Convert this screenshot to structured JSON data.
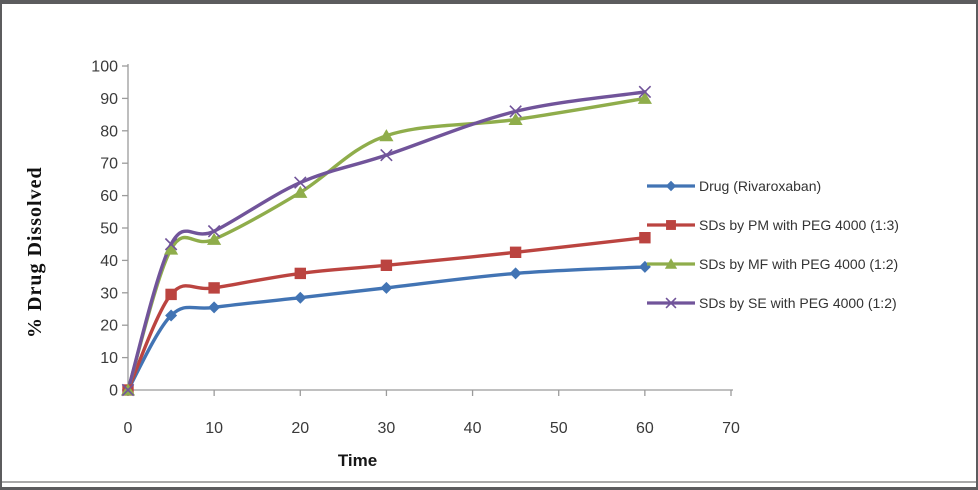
{
  "chart_data": {
    "type": "line",
    "title": "",
    "xlabel": "Time",
    "ylabel": "% Drug Dissolved",
    "x": [
      0,
      5,
      10,
      20,
      30,
      45,
      60
    ],
    "xlim": [
      0,
      70
    ],
    "ylim": [
      0,
      100
    ],
    "x_ticks": [
      0,
      10,
      20,
      30,
      40,
      50,
      60,
      70
    ],
    "y_ticks": [
      0,
      10,
      20,
      30,
      40,
      50,
      60,
      70,
      80,
      90,
      100
    ],
    "grid": false,
    "smoothed_lines": true,
    "legend_position": "right",
    "axis_color": "#9b9b9b",
    "tick_label_color": "#3a3a3a",
    "series": [
      {
        "name": "Drug (Rivaroxaban)",
        "marker": "diamond",
        "color": "#4274B4",
        "values": [
          0,
          23,
          25.5,
          28.5,
          31.5,
          36,
          38
        ]
      },
      {
        "name": "SDs by PM with PEG 4000 (1:3)",
        "marker": "square",
        "color": "#BB4440",
        "values": [
          0,
          29.5,
          31.5,
          36,
          38.5,
          42.5,
          47
        ]
      },
      {
        "name": "SDs by MF with PEG 4000 (1:2)",
        "marker": "triangle",
        "color": "#8FAD4B",
        "values": [
          0,
          43.5,
          46.5,
          61,
          78.5,
          83.5,
          90
        ]
      },
      {
        "name": "SDs by SE with PEG 4000 (1:2)",
        "marker": "x",
        "color": "#71549A",
        "values": [
          0,
          45,
          49,
          64,
          72.5,
          86,
          92
        ]
      }
    ]
  }
}
